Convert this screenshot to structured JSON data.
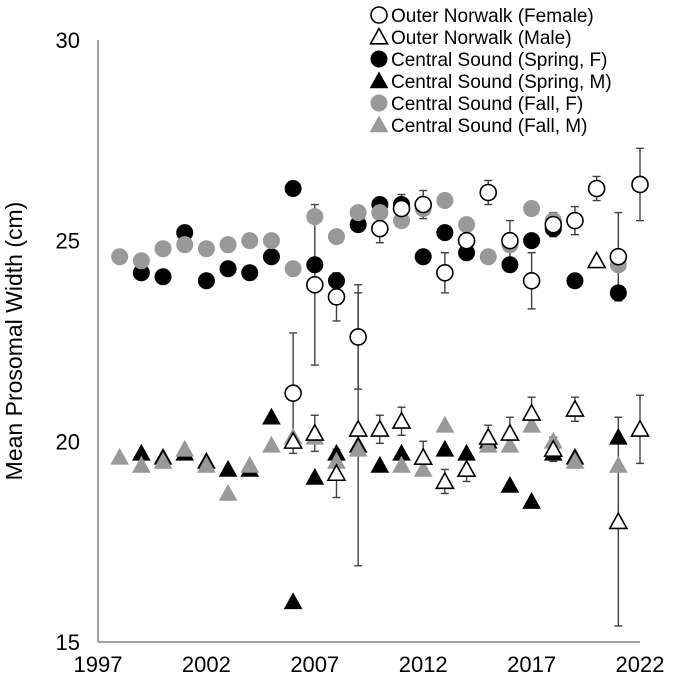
{
  "chart_data": {
    "type": "scatter",
    "title": "",
    "xlabel": "",
    "ylabel": "Mean Prosomal Width (cm)",
    "xlim": [
      1997,
      2022
    ],
    "ylim": [
      15,
      30
    ],
    "xticks": [
      "1997",
      "2002",
      "2007",
      "2012",
      "2017",
      "2022"
    ],
    "yticks": [
      "15",
      "20",
      "25",
      "30"
    ],
    "grid": false,
    "legend_position": "top-right",
    "series": [
      {
        "name": "Outer Norwalk (Female)",
        "marker": "circle",
        "filled": false,
        "color": "#000000",
        "points": [
          {
            "x": 2006,
            "y": 21.2,
            "err": 1.5
          },
          {
            "x": 2007,
            "y": 23.9,
            "err": 2.0
          },
          {
            "x": 2008,
            "y": 23.6,
            "err": 0.6
          },
          {
            "x": 2009,
            "y": 22.6,
            "err": 1.3
          },
          {
            "x": 2010,
            "y": 25.3,
            "err": 0.35
          },
          {
            "x": 2011,
            "y": 25.8,
            "err": 0.35
          },
          {
            "x": 2012,
            "y": 25.9,
            "err": 0.35
          },
          {
            "x": 2013,
            "y": 24.2,
            "err": 0.5
          },
          {
            "x": 2014,
            "y": 25.0,
            "err": 0.35
          },
          {
            "x": 2015,
            "y": 26.2,
            "err": 0.3
          },
          {
            "x": 2016,
            "y": 25.0,
            "err": 0.5
          },
          {
            "x": 2017,
            "y": 24.0,
            "err": 0.7
          },
          {
            "x": 2018,
            "y": 25.4,
            "err": 0.3
          },
          {
            "x": 2019,
            "y": 25.5,
            "err": 0.35
          },
          {
            "x": 2020,
            "y": 26.3,
            "err": 0.3
          },
          {
            "x": 2021,
            "y": 24.6,
            "err": 1.1
          },
          {
            "x": 2022,
            "y": 26.4,
            "err": 0.9
          }
        ]
      },
      {
        "name": "Outer Norwalk (Male)",
        "marker": "triangle",
        "filled": false,
        "color": "#000000",
        "points": [
          {
            "x": 2006,
            "y": 20.0,
            "err": 0
          },
          {
            "x": 2007,
            "y": 20.2,
            "err": 0.45
          },
          {
            "x": 2008,
            "y": 19.2,
            "err": 0.6
          },
          {
            "x": 2009,
            "y": 20.3,
            "err": 3.4
          },
          {
            "x": 2010,
            "y": 20.3,
            "err": 0.35
          },
          {
            "x": 2011,
            "y": 20.5,
            "err": 0.35
          },
          {
            "x": 2012,
            "y": 19.6,
            "err": 0.4
          },
          {
            "x": 2013,
            "y": 19.0,
            "err": 0.3
          },
          {
            "x": 2014,
            "y": 19.3,
            "err": 0.3
          },
          {
            "x": 2015,
            "y": 20.1,
            "err": 0.3
          },
          {
            "x": 2016,
            "y": 20.2,
            "err": 0.4
          },
          {
            "x": 2017,
            "y": 20.7,
            "err": 0.4
          },
          {
            "x": 2018,
            "y": 19.8,
            "err": 0.3
          },
          {
            "x": 2019,
            "y": 20.8,
            "err": 0.3
          },
          {
            "x": 2020,
            "y": 24.5,
            "err": 0
          },
          {
            "x": 2021,
            "y": 18.0,
            "err": 2.6
          },
          {
            "x": 2022,
            "y": 20.3,
            "err": 0.85
          }
        ]
      },
      {
        "name": "Central Sound (Spring, F)",
        "marker": "circle",
        "filled": true,
        "color": "#000000",
        "points": [
          {
            "x": 1999,
            "y": 24.2
          },
          {
            "x": 2000,
            "y": 24.1
          },
          {
            "x": 2001,
            "y": 25.2
          },
          {
            "x": 2002,
            "y": 24.0
          },
          {
            "x": 2003,
            "y": 24.3
          },
          {
            "x": 2004,
            "y": 24.2
          },
          {
            "x": 2005,
            "y": 24.6
          },
          {
            "x": 2006,
            "y": 26.3
          },
          {
            "x": 2007,
            "y": 24.4
          },
          {
            "x": 2008,
            "y": 24.0
          },
          {
            "x": 2009,
            "y": 25.4
          },
          {
            "x": 2010,
            "y": 25.9
          },
          {
            "x": 2011,
            "y": 25.9
          },
          {
            "x": 2012,
            "y": 24.6
          },
          {
            "x": 2013,
            "y": 25.2
          },
          {
            "x": 2014,
            "y": 24.7
          },
          {
            "x": 2016,
            "y": 24.4
          },
          {
            "x": 2017,
            "y": 25.0
          },
          {
            "x": 2018,
            "y": 25.3
          },
          {
            "x": 2019,
            "y": 24.0
          },
          {
            "x": 2021,
            "y": 23.7
          }
        ]
      },
      {
        "name": "Central Sound (Spring, M)",
        "marker": "triangle",
        "filled": true,
        "color": "#000000",
        "points": [
          {
            "x": 1999,
            "y": 19.7
          },
          {
            "x": 2000,
            "y": 19.6
          },
          {
            "x": 2001,
            "y": 19.7
          },
          {
            "x": 2002,
            "y": 19.5
          },
          {
            "x": 2003,
            "y": 19.3
          },
          {
            "x": 2004,
            "y": 19.3
          },
          {
            "x": 2005,
            "y": 20.6
          },
          {
            "x": 2006,
            "y": 16.0
          },
          {
            "x": 2007,
            "y": 19.1
          },
          {
            "x": 2008,
            "y": 19.7
          },
          {
            "x": 2009,
            "y": 19.9
          },
          {
            "x": 2010,
            "y": 19.4
          },
          {
            "x": 2011,
            "y": 19.7
          },
          {
            "x": 2012,
            "y": 19.6
          },
          {
            "x": 2013,
            "y": 19.8
          },
          {
            "x": 2014,
            "y": 19.7
          },
          {
            "x": 2015,
            "y": 20.0
          },
          {
            "x": 2016,
            "y": 18.9
          },
          {
            "x": 2017,
            "y": 18.5
          },
          {
            "x": 2018,
            "y": 19.7
          },
          {
            "x": 2019,
            "y": 19.6
          },
          {
            "x": 2021,
            "y": 20.1
          }
        ]
      },
      {
        "name": "Central Sound (Fall, F)",
        "marker": "circle",
        "filled": true,
        "color": "#999999",
        "points": [
          {
            "x": 1998,
            "y": 24.6
          },
          {
            "x": 1999,
            "y": 24.5
          },
          {
            "x": 2000,
            "y": 24.8
          },
          {
            "x": 2001,
            "y": 24.9
          },
          {
            "x": 2002,
            "y": 24.8
          },
          {
            "x": 2003,
            "y": 24.9
          },
          {
            "x": 2004,
            "y": 25.0
          },
          {
            "x": 2005,
            "y": 25.0
          },
          {
            "x": 2006,
            "y": 24.3
          },
          {
            "x": 2007,
            "y": 25.6
          },
          {
            "x": 2008,
            "y": 25.1
          },
          {
            "x": 2009,
            "y": 25.7
          },
          {
            "x": 2010,
            "y": 25.7
          },
          {
            "x": 2011,
            "y": 25.5
          },
          {
            "x": 2012,
            "y": 25.8
          },
          {
            "x": 2013,
            "y": 26.0
          },
          {
            "x": 2014,
            "y": 25.4
          },
          {
            "x": 2015,
            "y": 24.6
          },
          {
            "x": 2016,
            "y": 24.9
          },
          {
            "x": 2017,
            "y": 25.8
          },
          {
            "x": 2018,
            "y": 25.5
          },
          {
            "x": 2021,
            "y": 24.4
          }
        ]
      },
      {
        "name": "Central Sound (Fall, M)",
        "marker": "triangle",
        "filled": true,
        "color": "#999999",
        "points": [
          {
            "x": 1998,
            "y": 19.6
          },
          {
            "x": 1999,
            "y": 19.4
          },
          {
            "x": 2000,
            "y": 19.5
          },
          {
            "x": 2001,
            "y": 19.8
          },
          {
            "x": 2002,
            "y": 19.4
          },
          {
            "x": 2003,
            "y": 18.7
          },
          {
            "x": 2004,
            "y": 19.4
          },
          {
            "x": 2005,
            "y": 19.9
          },
          {
            "x": 2006,
            "y": 20.1
          },
          {
            "x": 2007,
            "y": 20.1
          },
          {
            "x": 2008,
            "y": 19.5
          },
          {
            "x": 2009,
            "y": 19.8
          },
          {
            "x": 2011,
            "y": 19.4
          },
          {
            "x": 2012,
            "y": 19.3
          },
          {
            "x": 2013,
            "y": 20.4
          },
          {
            "x": 2014,
            "y": 19.3
          },
          {
            "x": 2015,
            "y": 19.9
          },
          {
            "x": 2016,
            "y": 19.9
          },
          {
            "x": 2017,
            "y": 20.4
          },
          {
            "x": 2018,
            "y": 20.0
          },
          {
            "x": 2019,
            "y": 19.5
          },
          {
            "x": 2021,
            "y": 19.4
          }
        ]
      }
    ]
  }
}
